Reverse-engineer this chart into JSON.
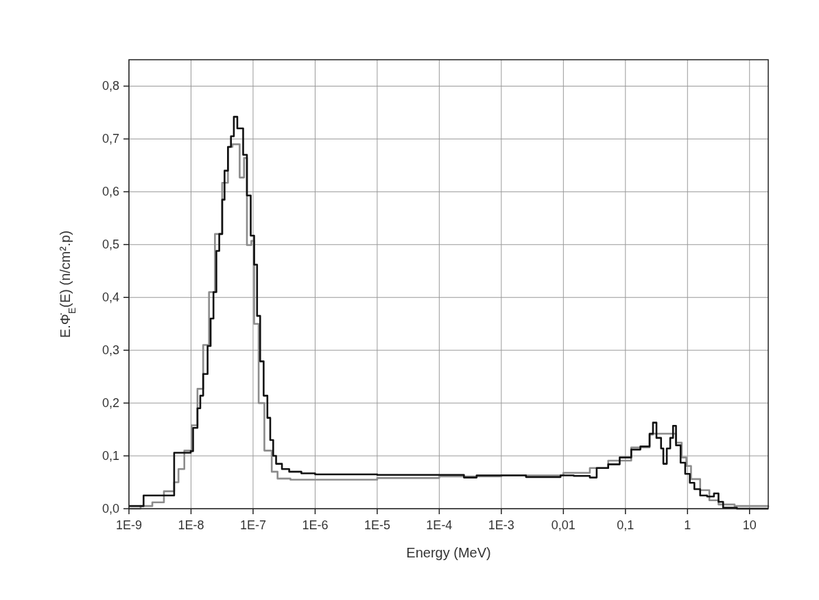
{
  "chart_data": {
    "type": "step",
    "xlabel": "Energy (MeV)",
    "ylabel": "E.Φ̇$_{E}$(E) (n/cm².p)",
    "log": "x",
    "grid": true,
    "line_style": "solid",
    "marker": "none",
    "xlim": [
      1e-09,
      20
    ],
    "ylim": [
      0,
      0.85
    ],
    "xticks": [
      {
        "value": 1e-09,
        "label": "1E-9"
      },
      {
        "value": 1e-08,
        "label": "1E-8"
      },
      {
        "value": 1e-07,
        "label": "1E-7"
      },
      {
        "value": 1e-06,
        "label": "1E-6"
      },
      {
        "value": 1e-05,
        "label": "1E-5"
      },
      {
        "value": 0.0001,
        "label": "1E-4"
      },
      {
        "value": 0.001,
        "label": "1E-3"
      },
      {
        "value": 0.01,
        "label": "0,01"
      },
      {
        "value": 0.1,
        "label": "0,1"
      },
      1,
      10
    ],
    "yticks": [
      {
        "value": 0,
        "label": "0,0"
      },
      {
        "value": 0.1,
        "label": "0,1"
      },
      {
        "value": 0.2,
        "label": "0,2"
      },
      {
        "value": 0.3,
        "label": "0,3"
      },
      {
        "value": 0.4,
        "label": "0,4"
      },
      {
        "value": 0.5,
        "label": "0,5"
      },
      {
        "value": 0.6,
        "label": "0,6"
      },
      {
        "value": 0.7,
        "label": "0,7"
      },
      {
        "value": 0.8,
        "label": "0,8"
      }
    ],
    "series": [
      {
        "color": "#8c8c8c",
        "x": [
          1e-09,
          1.54e-09,
          2.38e-09,
          3.66e-09,
          5.35e-09,
          6.28e-09,
          7.8e-09,
          1.02e-08,
          1.27e-08,
          1.57e-08,
          1.95e-08,
          2.43e-08,
          3.18e-08,
          3.94e-08,
          4.65e-08,
          6.08e-08,
          7.15e-08,
          7.96e-08,
          9.37e-08,
          1.04e-07,
          1.23e-07,
          1.52e-07,
          2e-07,
          2.48e-07,
          4e-07,
          1e-06,
          1e-05,
          0.0001,
          0.001,
          0.01,
          0.0267,
          0.0528,
          0.124,
          0.245,
          0.278,
          0.585,
          0.653,
          0.807,
          0.958,
          1.14,
          1.6,
          2.25,
          3.16,
          5.74,
          20
        ],
        "values": [
          0.0,
          0.005,
          0.012,
          0.033,
          0.05,
          0.075,
          0.11,
          0.158,
          0.227,
          0.31,
          0.41,
          0.52,
          0.617,
          0.685,
          0.69,
          0.627,
          0.664,
          0.499,
          0.507,
          0.35,
          0.2,
          0.11,
          0.07,
          0.057,
          0.055,
          0.055,
          0.058,
          0.061,
          0.063,
          0.068,
          0.077,
          0.091,
          0.116,
          0.14,
          0.142,
          0.142,
          0.125,
          0.097,
          0.081,
          0.056,
          0.035,
          0.016,
          0.008,
          0.005,
          0.003
        ]
      },
      {
        "color": "#111111",
        "x": [
          1e-09,
          1.72e-09,
          5.35e-09,
          9.9e-09,
          1.08e-08,
          1.27e-08,
          1.41e-08,
          1.57e-08,
          1.85e-08,
          2.07e-08,
          2.3e-08,
          2.56e-08,
          2.85e-08,
          3.18e-08,
          3.47e-08,
          3.94e-08,
          4.4e-08,
          4.9e-08,
          5.57e-08,
          6.92e-08,
          7.96e-08,
          9.16e-08,
          1.04e-07,
          1.16e-07,
          1.3e-07,
          1.48e-07,
          1.7e-07,
          1.89e-07,
          2.11e-07,
          2.35e-07,
          2.92e-07,
          3.82e-07,
          6e-07,
          1e-06,
          1e-05,
          0.0001,
          0.00025,
          0.0004,
          0.0025,
          0.009,
          0.0147,
          0.0267,
          0.0344,
          0.0528,
          0.0808,
          0.124,
          0.174,
          0.245,
          0.278,
          0.316,
          0.375,
          0.408,
          0.464,
          0.527,
          0.585,
          0.653,
          0.774,
          0.918,
          1.09,
          1.29,
          1.6,
          2.07,
          2.67,
          3.16,
          3.75,
          6.25,
          20
        ],
        "values": [
          0.005,
          0.025,
          0.106,
          0.109,
          0.153,
          0.19,
          0.214,
          0.255,
          0.308,
          0.36,
          0.41,
          0.488,
          0.52,
          0.585,
          0.64,
          0.685,
          0.705,
          0.742,
          0.72,
          0.67,
          0.593,
          0.517,
          0.462,
          0.365,
          0.279,
          0.214,
          0.172,
          0.13,
          0.1,
          0.085,
          0.075,
          0.07,
          0.067,
          0.065,
          0.064,
          0.064,
          0.059,
          0.063,
          0.06,
          0.063,
          0.062,
          0.059,
          0.077,
          0.084,
          0.097,
          0.112,
          0.118,
          0.142,
          0.163,
          0.134,
          0.114,
          0.085,
          0.114,
          0.134,
          0.157,
          0.12,
          0.087,
          0.066,
          0.049,
          0.037,
          0.025,
          0.023,
          0.029,
          0.013,
          0.002,
          0.0,
          0.0
        ]
      }
    ]
  }
}
